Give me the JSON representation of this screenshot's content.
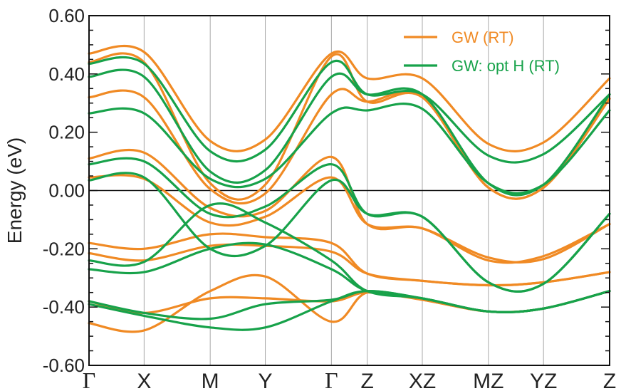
{
  "chart_data": {
    "type": "line",
    "title": "",
    "xlabel": "",
    "ylabel": "Energy (eV)",
    "ylim": [
      -0.6,
      0.6
    ],
    "yticks": [
      0.6,
      0.4,
      0.2,
      0.0,
      -0.2,
      -0.4,
      -0.6
    ],
    "ytick_labels": [
      "0.60",
      "0.40",
      "0.20",
      "0.00",
      "-0.20",
      "-0.40",
      "-0.60"
    ],
    "kpoints": [
      {
        "label": "Γ",
        "pos": 0.0,
        "greek": true
      },
      {
        "label": "X",
        "pos": 1.0
      },
      {
        "label": "M",
        "pos": 2.2
      },
      {
        "label": "Y",
        "pos": 3.2
      },
      {
        "label": "Γ",
        "pos": 4.4,
        "greek": true
      },
      {
        "label": "Z",
        "pos": 5.05
      },
      {
        "label": "XZ",
        "pos": 6.05
      },
      {
        "label": "MZ",
        "pos": 7.25
      },
      {
        "label": "YZ",
        "pos": 8.25
      },
      {
        "label": "Z",
        "pos": 9.45
      }
    ],
    "zero_line": 0.0,
    "grid": "vertical lines at k-points",
    "legend_position": "top-right",
    "series": [
      {
        "name": "GW (RT)",
        "color": "#f08a24",
        "bands": [
          [
            0.47,
            0.475,
            0.17,
            0.175,
            0.47,
            0.385,
            0.385,
            0.16,
            0.165,
            0.385
          ],
          [
            0.44,
            0.44,
            0.025,
            0.02,
            0.46,
            0.305,
            0.32,
            0.01,
            0.01,
            0.315
          ],
          [
            0.32,
            0.32,
            0.005,
            -0.01,
            0.33,
            0.305,
            0.32,
            0.01,
            0.01,
            0.315
          ],
          [
            0.11,
            0.13,
            -0.06,
            -0.07,
            0.115,
            -0.115,
            -0.13,
            -0.24,
            -0.225,
            -0.115
          ],
          [
            0.045,
            0.04,
            -0.11,
            -0.09,
            0.045,
            -0.115,
            -0.13,
            -0.23,
            -0.235,
            -0.115
          ],
          [
            -0.18,
            -0.2,
            -0.15,
            -0.16,
            -0.18,
            -0.285,
            -0.31,
            -0.325,
            -0.315,
            -0.28
          ],
          [
            -0.215,
            -0.24,
            -0.19,
            -0.19,
            -0.21,
            -0.285,
            -0.31,
            -0.325,
            -0.315,
            -0.28
          ],
          [
            -0.455,
            -0.48,
            -0.345,
            -0.295,
            -0.45,
            -0.35,
            -0.375,
            -0.415,
            -0.405,
            -0.345
          ],
          [
            -0.38,
            -0.42,
            -0.37,
            -0.37,
            -0.38,
            -0.35,
            -0.375,
            -0.415,
            -0.405,
            -0.345
          ]
        ]
      },
      {
        "name": "GW: opt H (RT)",
        "color": "#17a24a",
        "bands": [
          [
            0.435,
            0.435,
            0.135,
            0.14,
            0.44,
            0.33,
            0.33,
            0.12,
            0.125,
            0.33
          ],
          [
            0.39,
            0.39,
            0.065,
            0.07,
            0.39,
            0.33,
            0.33,
            0.025,
            0.02,
            0.33
          ],
          [
            0.265,
            0.265,
            0.04,
            0.04,
            0.265,
            0.275,
            0.28,
            0.025,
            0.02,
            0.275
          ],
          [
            0.09,
            0.1,
            -0.08,
            -0.055,
            0.09,
            -0.08,
            -0.09,
            -0.315,
            -0.32,
            -0.08
          ],
          [
            0.035,
            0.045,
            -0.2,
            -0.19,
            0.035,
            -0.08,
            -0.09,
            -0.315,
            -0.32,
            -0.08
          ],
          [
            -0.24,
            -0.245,
            -0.05,
            -0.11,
            -0.24,
            -0.345,
            -0.37,
            -0.415,
            -0.405,
            -0.345
          ],
          [
            -0.27,
            -0.28,
            -0.2,
            -0.185,
            -0.27,
            -0.345,
            -0.37,
            -0.415,
            -0.405,
            -0.345
          ],
          [
            -0.38,
            -0.42,
            -0.44,
            -0.39,
            -0.375,
            -0.345,
            -0.37,
            -0.415,
            -0.405,
            -0.345
          ],
          [
            -0.39,
            -0.43,
            -0.47,
            -0.47,
            -0.38,
            -0.345,
            -0.37,
            -0.415,
            -0.405,
            -0.345
          ]
        ]
      }
    ]
  }
}
